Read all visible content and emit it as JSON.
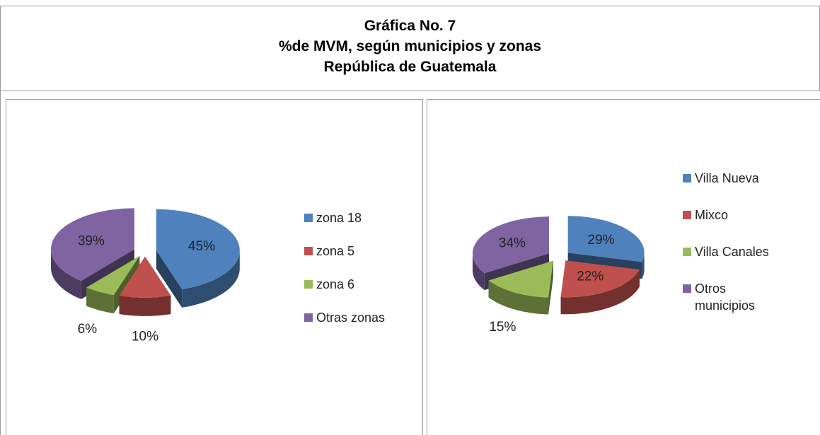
{
  "header": {
    "title_lines": [
      "Gráfica No. 7",
      "%de MVM,  según municipios y zonas",
      "República de Guatemala"
    ]
  },
  "chart_data": [
    {
      "type": "pie",
      "categories": [
        "zona 18",
        "zona 5",
        "zona 6",
        "Otras zonas"
      ],
      "values": [
        45,
        10,
        6,
        39
      ],
      "value_labels": [
        "45%",
        "10%",
        "6%",
        "39%"
      ],
      "colors": [
        "#4f81bd",
        "#c0504d",
        "#9bbb59",
        "#8064a2"
      ],
      "legend": "right"
    },
    {
      "type": "pie",
      "categories": [
        "Villa Nueva",
        "Mixco",
        "Villa Canales",
        "Otros municipios"
      ],
      "values": [
        29,
        22,
        15,
        34
      ],
      "value_labels": [
        "29%",
        "22%",
        "15%",
        "34%"
      ],
      "colors": [
        "#4f81bd",
        "#c0504d",
        "#9bbb59",
        "#8064a2"
      ],
      "legend": "right"
    }
  ]
}
